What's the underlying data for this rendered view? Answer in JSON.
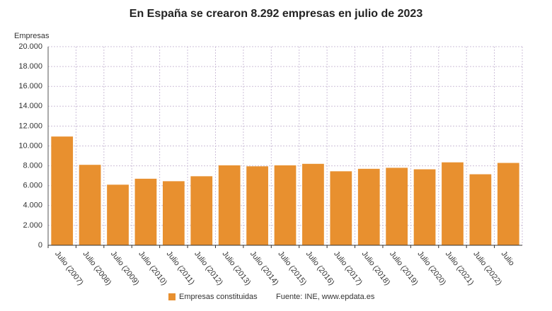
{
  "chart_data": {
    "type": "bar",
    "title": "En España se crearon 8.292 empresas en julio de 2023",
    "y_label": "Empresas",
    "categories": [
      "Julio (2007)",
      "Julio (2008)",
      "Julio (2009)",
      "Julio (2010)",
      "Julio (2011)",
      "Julio (2012)",
      "Julio (2013)",
      "Julio (2014)",
      "Julio (2015)",
      "Julio (2016)",
      "Julio (2017)",
      "Julio (2018)",
      "Julio (2019)",
      "Julio (2020)",
      "Julio (2021)",
      "Julio (2022)",
      "Julio"
    ],
    "series": [
      {
        "name": "Empresas constituidas",
        "color": "#e8902f",
        "values": [
          10950,
          8100,
          6100,
          6700,
          6450,
          6950,
          8050,
          7950,
          8050,
          8200,
          7450,
          7700,
          7800,
          7650,
          8350,
          7150,
          8292
        ]
      }
    ],
    "ylim": [
      0,
      20000
    ],
    "yticks": [
      0,
      {
        "value": 2000,
        "label": "2.000"
      },
      {
        "value": 4000,
        "label": "4.000"
      },
      {
        "value": 6000,
        "label": "6.000"
      },
      {
        "value": 8000,
        "label": "8.000"
      },
      {
        "value": 10000,
        "label": "10.000"
      },
      {
        "value": 12000,
        "label": "12.000"
      },
      {
        "value": 14000,
        "label": "14.000"
      },
      {
        "value": 16000,
        "label": "16.000"
      },
      {
        "value": 18000,
        "label": "18.000"
      },
      {
        "value": 20000,
        "label": "20.000"
      }
    ],
    "grid": true,
    "source": "Fuente: INE, www.epdata.es"
  }
}
